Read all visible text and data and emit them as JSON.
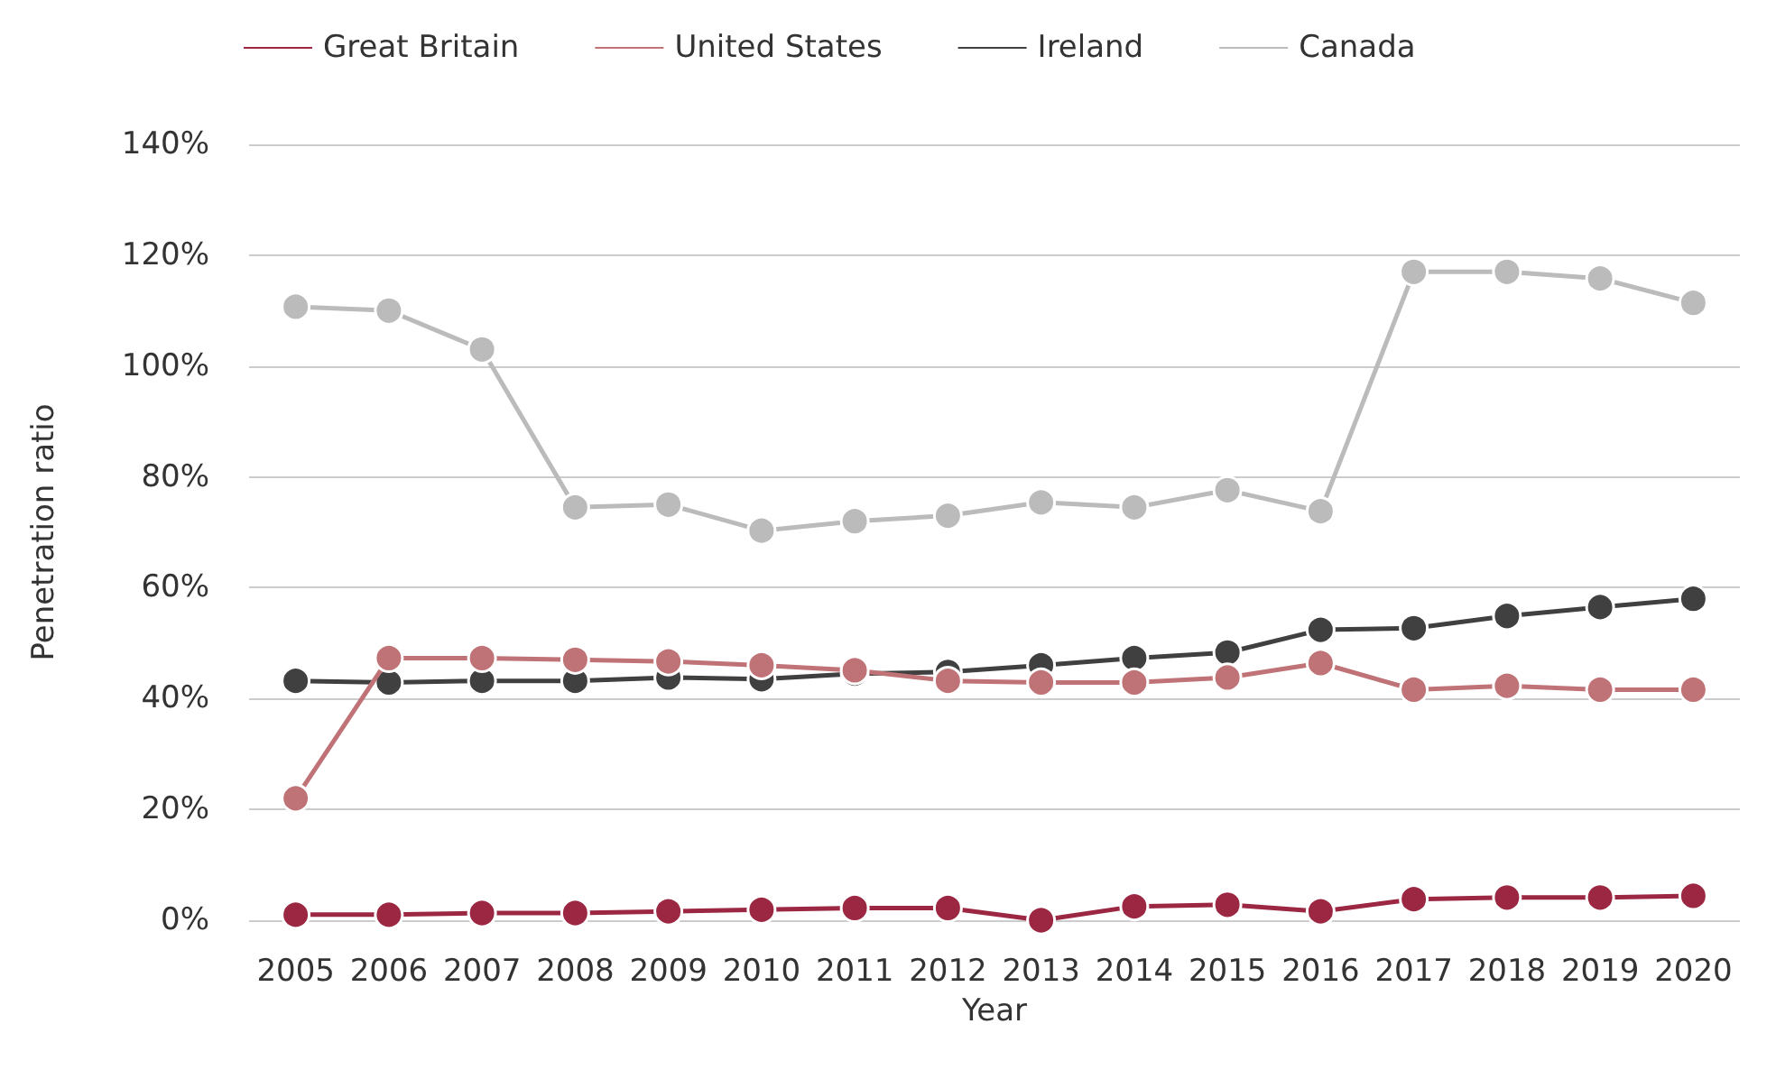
{
  "chart_data": {
    "type": "line",
    "xlabel": "Year",
    "ylabel": "Penetration ratio",
    "categories": [
      "2005",
      "2006",
      "2007",
      "2008",
      "2009",
      "2010",
      "2011",
      "2012",
      "2013",
      "2014",
      "2015",
      "2016",
      "2017",
      "2018",
      "2019",
      "2020"
    ],
    "series": [
      {
        "name": "Great Britain",
        "color": "#9b2743",
        "values": [
          1,
          1,
          1.3,
          1.3,
          1.6,
          1.9,
          2.2,
          2.2,
          0,
          2.5,
          2.8,
          1.6,
          3.8,
          4.1,
          4.1,
          4.4
        ]
      },
      {
        "name": "United States",
        "color": "#c07376",
        "values": [
          22,
          47.3,
          47.3,
          47,
          46.7,
          46,
          45.1,
          43.2,
          42.9,
          42.9,
          43.8,
          46.4,
          41.6,
          42.3,
          41.6,
          41.6
        ]
      },
      {
        "name": "Ireland",
        "color": "#404040",
        "values": [
          43.2,
          42.9,
          43.2,
          43.2,
          43.8,
          43.5,
          44.5,
          44.8,
          46,
          47.3,
          48.3,
          52.4,
          52.7,
          54.9,
          56.5,
          58
        ]
      },
      {
        "name": "Canada",
        "color": "#bbbbbb",
        "values": [
          110.7,
          110,
          103,
          74.5,
          75,
          70.3,
          72,
          73,
          75.4,
          74.5,
          77.6,
          73.8,
          117,
          117,
          115.8,
          111.4
        ]
      }
    ],
    "ylim": [
      0,
      140
    ],
    "yticks": [
      {
        "value": 0,
        "label": "0%"
      },
      {
        "value": 20,
        "label": "20%"
      },
      {
        "value": 40,
        "label": "40%"
      },
      {
        "value": 60,
        "label": "60%"
      },
      {
        "value": 80,
        "label": "80%"
      },
      {
        "value": 100,
        "label": "100%"
      },
      {
        "value": 120,
        "label": "120%"
      },
      {
        "value": 140,
        "label": "140%"
      }
    ],
    "grid": "y",
    "legend": "top left",
    "marker": "circle",
    "line_style": "solid"
  }
}
